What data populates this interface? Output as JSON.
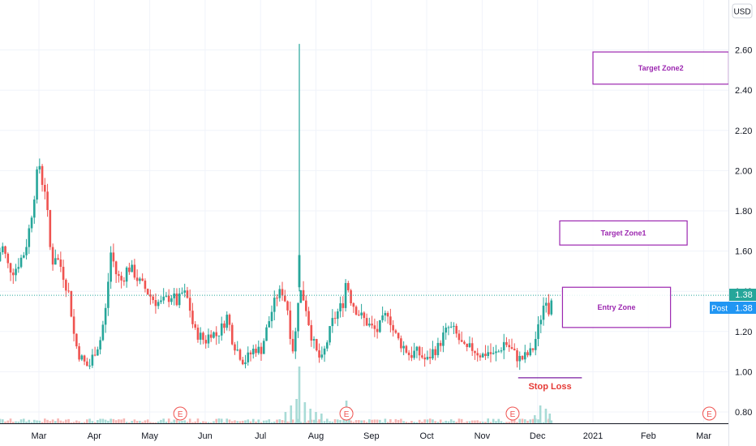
{
  "chart_data": {
    "type": "candlestick",
    "title": "",
    "xlabel": "",
    "ylabel": "",
    "currency": "USD",
    "ylim": [
      0.72,
      2.76
    ],
    "y_ticks": [
      "0.80",
      "1.00",
      "1.20",
      "1.40",
      "1.60",
      "1.80",
      "2.00",
      "2.20",
      "2.40",
      "2.60"
    ],
    "x_ticks": [
      {
        "label": "Mar",
        "month": 2
      },
      {
        "label": "Apr",
        "month": 3
      },
      {
        "label": "May",
        "month": 4
      },
      {
        "label": "Jun",
        "month": 5
      },
      {
        "label": "Jul",
        "month": 6
      },
      {
        "label": "Aug",
        "month": 7
      },
      {
        "label": "Sep",
        "month": 8
      },
      {
        "label": "Oct",
        "month": 9
      },
      {
        "label": "Nov",
        "month": 10
      },
      {
        "label": "Dec",
        "month": 11
      },
      {
        "label": "2021",
        "month": 12
      },
      {
        "label": "Feb",
        "month": 13
      },
      {
        "label": "Mar",
        "month": 14
      }
    ],
    "grid": true,
    "last_price": "1.38",
    "post_label": "Post",
    "post_price": "1.38",
    "price_line": 1.38,
    "up_color": "#26a69a",
    "down_color": "#ef5350",
    "zone_color": "#9c27b0",
    "annotation_color": "#e53935",
    "price_path": [
      [
        1.25,
        1.55
      ],
      [
        1.3,
        1.6
      ],
      [
        1.35,
        1.62
      ],
      [
        1.45,
        1.52
      ],
      [
        1.55,
        1.5
      ],
      [
        1.65,
        1.55
      ],
      [
        1.75,
        1.6
      ],
      [
        1.85,
        1.75
      ],
      [
        1.9,
        1.85
      ],
      [
        2.0,
        2.05
      ],
      [
        2.05,
        1.95
      ],
      [
        2.12,
        1.9
      ],
      [
        2.2,
        1.62
      ],
      [
        2.25,
        1.55
      ],
      [
        2.3,
        1.58
      ],
      [
        2.4,
        1.52
      ],
      [
        2.5,
        1.42
      ],
      [
        2.55,
        1.38
      ],
      [
        2.62,
        1.2
      ],
      [
        2.7,
        1.1
      ],
      [
        2.8,
        1.05
      ],
      [
        2.9,
        1.02
      ],
      [
        3.0,
        1.1
      ],
      [
        3.1,
        1.15
      ],
      [
        3.2,
        1.3
      ],
      [
        3.3,
        1.6
      ],
      [
        3.4,
        1.48
      ],
      [
        3.5,
        1.45
      ],
      [
        3.6,
        1.52
      ],
      [
        3.7,
        1.5
      ],
      [
        3.8,
        1.45
      ],
      [
        3.9,
        1.42
      ],
      [
        4.0,
        1.38
      ],
      [
        4.1,
        1.35
      ],
      [
        4.2,
        1.34
      ],
      [
        4.3,
        1.36
      ],
      [
        4.4,
        1.38
      ],
      [
        4.5,
        1.34
      ],
      [
        4.6,
        1.4
      ],
      [
        4.7,
        1.35
      ],
      [
        4.8,
        1.2
      ],
      [
        4.9,
        1.18
      ],
      [
        5.0,
        1.15
      ],
      [
        5.1,
        1.2
      ],
      [
        5.2,
        1.18
      ],
      [
        5.3,
        1.22
      ],
      [
        5.4,
        1.28
      ],
      [
        5.5,
        1.15
      ],
      [
        5.6,
        1.1
      ],
      [
        5.7,
        1.05
      ],
      [
        5.8,
        1.08
      ],
      [
        5.9,
        1.12
      ],
      [
        6.0,
        1.1
      ],
      [
        6.1,
        1.2
      ],
      [
        6.2,
        1.3
      ],
      [
        6.3,
        1.38
      ],
      [
        6.4,
        1.4
      ],
      [
        6.5,
        1.3
      ],
      [
        6.55,
        1.15
      ],
      [
        6.6,
        1.1
      ],
      [
        6.65,
        1.25
      ],
      [
        6.7,
        1.45
      ],
      [
        6.72,
        1.4
      ],
      [
        6.8,
        1.35
      ],
      [
        6.9,
        1.2
      ],
      [
        7.0,
        1.1
      ],
      [
        7.1,
        1.05
      ],
      [
        7.2,
        1.15
      ],
      [
        7.3,
        1.25
      ],
      [
        7.4,
        1.3
      ],
      [
        7.5,
        1.35
      ],
      [
        7.55,
        1.48
      ],
      [
        7.6,
        1.38
      ],
      [
        7.7,
        1.32
      ],
      [
        7.8,
        1.28
      ],
      [
        7.9,
        1.25
      ],
      [
        8.0,
        1.22
      ],
      [
        8.1,
        1.2
      ],
      [
        8.2,
        1.25
      ],
      [
        8.3,
        1.3
      ],
      [
        8.4,
        1.2
      ],
      [
        8.5,
        1.15
      ],
      [
        8.6,
        1.12
      ],
      [
        8.7,
        1.08
      ],
      [
        8.8,
        1.1
      ],
      [
        8.9,
        1.08
      ],
      [
        9.0,
        1.05
      ],
      [
        9.1,
        1.1
      ],
      [
        9.2,
        1.12
      ],
      [
        9.3,
        1.18
      ],
      [
        9.4,
        1.22
      ],
      [
        9.5,
        1.2
      ],
      [
        9.6,
        1.15
      ],
      [
        9.7,
        1.1
      ],
      [
        9.8,
        1.12
      ],
      [
        9.9,
        1.1
      ],
      [
        10.0,
        1.08
      ],
      [
        10.1,
        1.1
      ],
      [
        10.2,
        1.08
      ],
      [
        10.3,
        1.1
      ],
      [
        10.4,
        1.15
      ],
      [
        10.5,
        1.12
      ],
      [
        10.6,
        1.08
      ],
      [
        10.7,
        1.06
      ],
      [
        10.8,
        1.08
      ],
      [
        10.9,
        1.1
      ],
      [
        11.0,
        1.2
      ],
      [
        11.08,
        1.3
      ],
      [
        11.15,
        1.38
      ],
      [
        11.2,
        1.3
      ],
      [
        11.25,
        1.38
      ]
    ],
    "spike": {
      "month": 6.7,
      "low": 1.4,
      "high": 2.63,
      "open": 1.42,
      "close": 1.58
    },
    "zones": [
      {
        "label": "Target Zone2",
        "x0": 12.0,
        "x1": 14.45,
        "y0": 2.43,
        "y1": 2.59
      },
      {
        "label": "Target Zone1",
        "x0": 11.4,
        "x1": 13.7,
        "y0": 1.63,
        "y1": 1.75
      },
      {
        "label": "Entry Zone",
        "x0": 11.45,
        "x1": 13.4,
        "y0": 1.22,
        "y1": 1.42
      }
    ],
    "stop_loss": {
      "label": "Stop Loss",
      "x0": 10.65,
      "x1": 11.8,
      "y": 0.97
    },
    "earnings": [
      {
        "label": "E",
        "month": 4.55
      },
      {
        "label": "E",
        "month": 7.55
      },
      {
        "label": "E",
        "month": 10.55
      },
      {
        "label": "E",
        "month": 14.1
      }
    ]
  }
}
